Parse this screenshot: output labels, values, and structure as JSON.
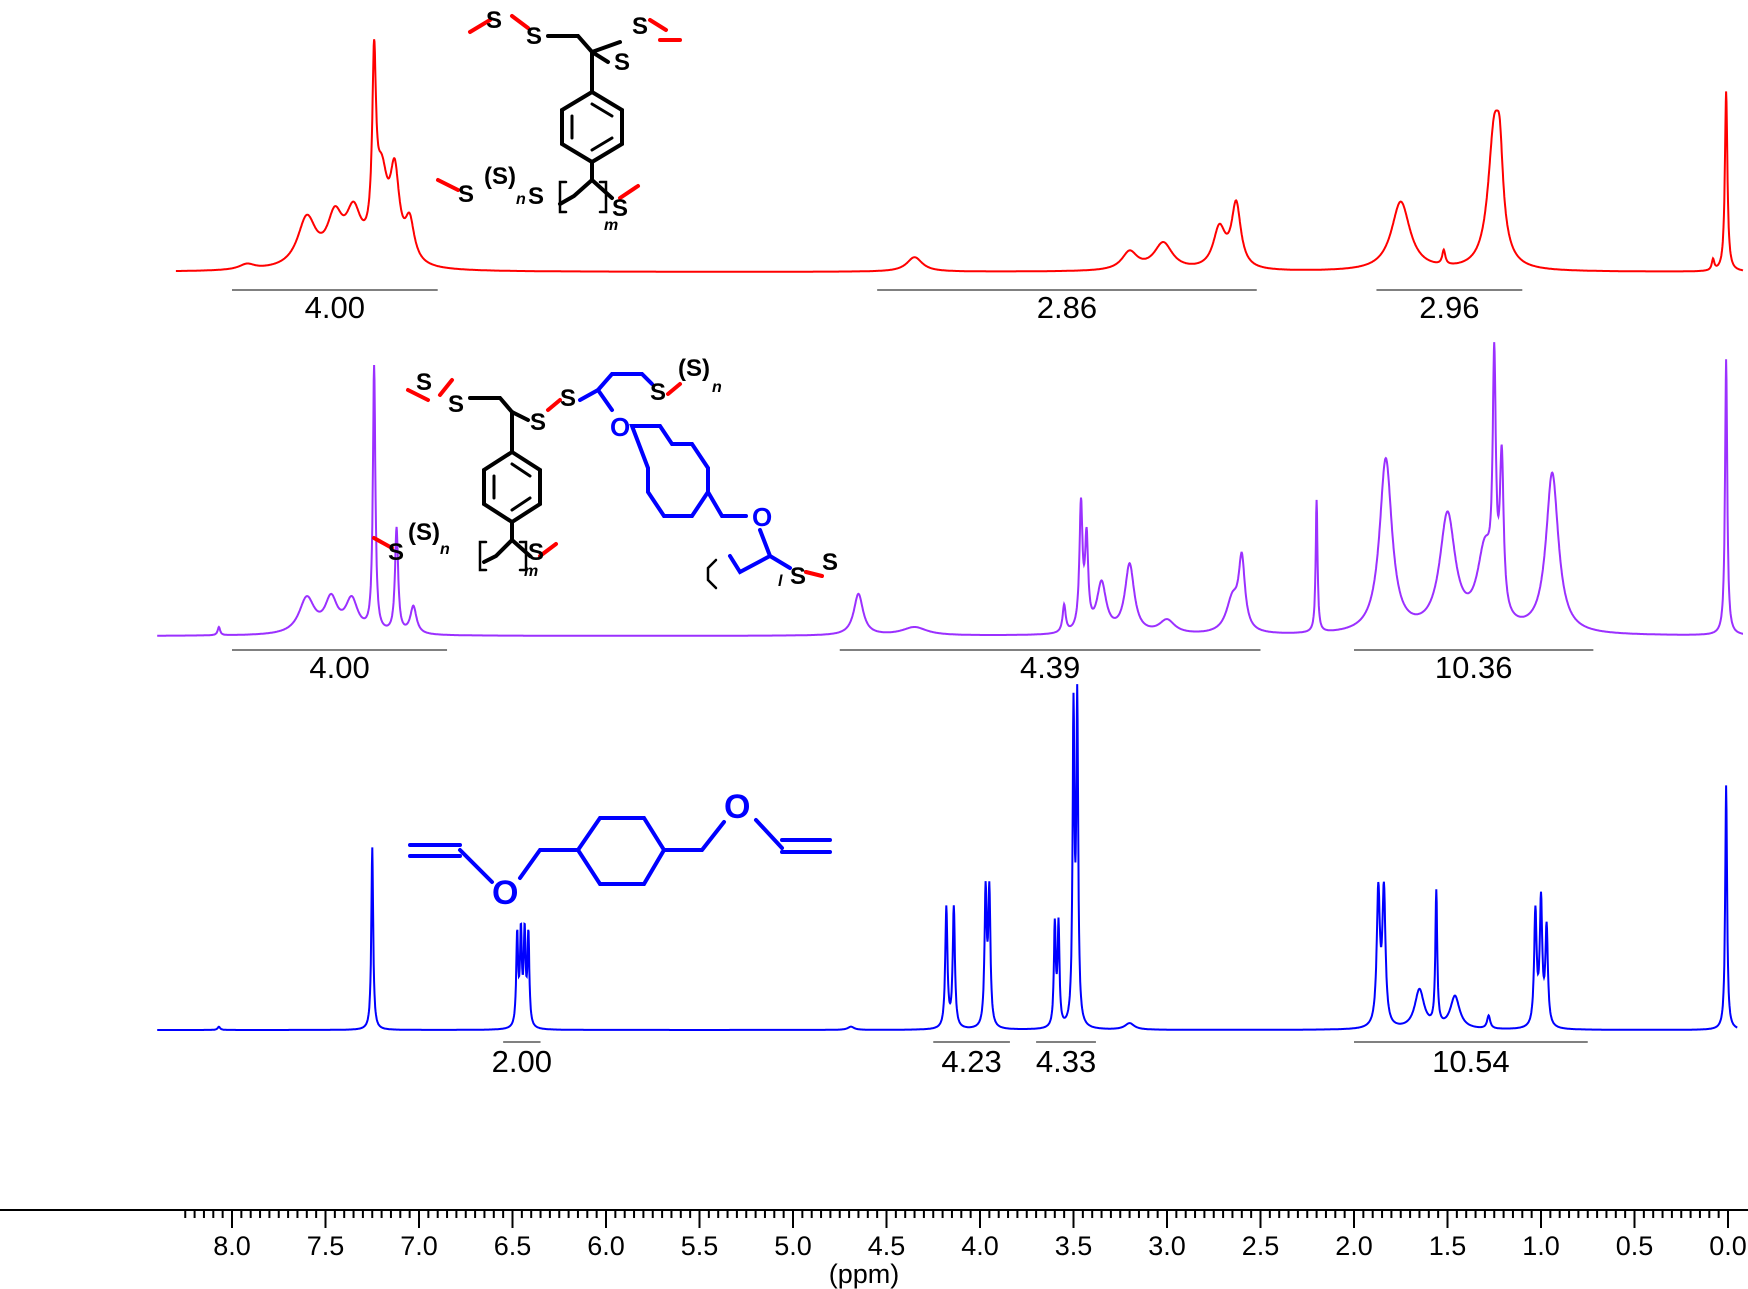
{
  "chart_data": {
    "type": "line",
    "xlabel": "(ppm)",
    "xlim": [
      8.3,
      -0.05
    ],
    "x_reversed": true,
    "x_ticks": [
      "8.0",
      "7.5",
      "7.0",
      "6.5",
      "6.0",
      "5.5",
      "5.0",
      "4.5",
      "4.0",
      "3.5",
      "3.0",
      "2.5",
      "2.0",
      "1.5",
      "1.0",
      "0.5",
      "0.0"
    ],
    "grid": false,
    "legend": "none",
    "series": [
      {
        "color": "#ff0000",
        "peaks": [
          {
            "ppm": 7.92,
            "h": 0.03,
            "w": 0.05
          },
          {
            "ppm": 7.6,
            "h": 0.27,
            "w": 0.06
          },
          {
            "ppm": 7.45,
            "h": 0.25,
            "w": 0.05
          },
          {
            "ppm": 7.35,
            "h": 0.27,
            "w": 0.05
          },
          {
            "ppm": 7.24,
            "h": 0.95,
            "w": 0.012
          },
          {
            "ppm": 7.2,
            "h": 0.45,
            "w": 0.04
          },
          {
            "ppm": 7.13,
            "h": 0.45,
            "w": 0.03
          },
          {
            "ppm": 7.05,
            "h": 0.22,
            "w": 0.03
          },
          {
            "ppm": 4.35,
            "h": 0.08,
            "w": 0.05
          },
          {
            "ppm": 3.2,
            "h": 0.1,
            "w": 0.05
          },
          {
            "ppm": 3.02,
            "h": 0.15,
            "w": 0.06
          },
          {
            "ppm": 2.72,
            "h": 0.22,
            "w": 0.04
          },
          {
            "ppm": 2.63,
            "h": 0.35,
            "w": 0.03
          },
          {
            "ppm": 1.75,
            "h": 0.38,
            "w": 0.06
          },
          {
            "ppm": 1.52,
            "h": 0.08,
            "w": 0.01
          },
          {
            "ppm": 1.25,
            "h": 0.75,
            "w": 0.04
          },
          {
            "ppm": 1.22,
            "h": 0.35,
            "w": 0.02
          },
          {
            "ppm": 0.08,
            "h": 0.06,
            "w": 0.008
          },
          {
            "ppm": 0.01,
            "h": 0.99,
            "w": 0.008
          }
        ],
        "integrals": [
          {
            "from": 8.0,
            "to": 6.9,
            "label": "4.00"
          },
          {
            "from": 4.55,
            "to": 2.52,
            "label": "2.86"
          },
          {
            "from": 1.88,
            "to": 1.1,
            "label": "2.96"
          }
        ]
      },
      {
        "color": "#9b30ff",
        "peaks": [
          {
            "ppm": 8.07,
            "h": 0.03,
            "w": 0.008
          },
          {
            "ppm": 7.6,
            "h": 0.13,
            "w": 0.05
          },
          {
            "ppm": 7.47,
            "h": 0.12,
            "w": 0.04
          },
          {
            "ppm": 7.36,
            "h": 0.12,
            "w": 0.04
          },
          {
            "ppm": 7.24,
            "h": 0.96,
            "w": 0.008
          },
          {
            "ppm": 7.12,
            "h": 0.38,
            "w": 0.01
          },
          {
            "ppm": 7.03,
            "h": 0.1,
            "w": 0.02
          },
          {
            "ppm": 4.65,
            "h": 0.15,
            "w": 0.03
          },
          {
            "ppm": 4.35,
            "h": 0.03,
            "w": 0.08
          },
          {
            "ppm": 3.55,
            "h": 0.1,
            "w": 0.01
          },
          {
            "ppm": 3.46,
            "h": 0.45,
            "w": 0.01
          },
          {
            "ppm": 3.43,
            "h": 0.32,
            "w": 0.01
          },
          {
            "ppm": 3.35,
            "h": 0.18,
            "w": 0.03
          },
          {
            "ppm": 3.2,
            "h": 0.25,
            "w": 0.03
          },
          {
            "ppm": 3.0,
            "h": 0.05,
            "w": 0.05
          },
          {
            "ppm": 2.65,
            "h": 0.12,
            "w": 0.04
          },
          {
            "ppm": 2.6,
            "h": 0.25,
            "w": 0.02
          },
          {
            "ppm": 2.2,
            "h": 0.48,
            "w": 0.006
          },
          {
            "ppm": 1.83,
            "h": 0.63,
            "w": 0.04
          },
          {
            "ppm": 1.5,
            "h": 0.42,
            "w": 0.05
          },
          {
            "ppm": 1.3,
            "h": 0.28,
            "w": 0.05
          },
          {
            "ppm": 1.25,
            "h": 0.85,
            "w": 0.01
          },
          {
            "ppm": 1.21,
            "h": 0.55,
            "w": 0.012
          },
          {
            "ppm": 0.94,
            "h": 0.58,
            "w": 0.04
          },
          {
            "ppm": 0.01,
            "h": 1.0,
            "w": 0.007
          }
        ],
        "integrals": [
          {
            "from": 8.0,
            "to": 6.85,
            "label": "4.00"
          },
          {
            "from": 4.75,
            "to": 2.5,
            "label": "4.39"
          },
          {
            "from": 2.0,
            "to": 0.72,
            "label": "10.36"
          }
        ]
      },
      {
        "color": "#0000ff",
        "peaks": [
          {
            "ppm": 8.07,
            "h": 0.01,
            "w": 0.008
          },
          {
            "ppm": 7.25,
            "h": 0.56,
            "w": 0.006
          },
          {
            "ppm": 6.475,
            "h": 0.28,
            "w": 0.006
          },
          {
            "ppm": 6.455,
            "h": 0.28,
            "w": 0.006
          },
          {
            "ppm": 6.435,
            "h": 0.28,
            "w": 0.006
          },
          {
            "ppm": 6.415,
            "h": 0.28,
            "w": 0.006
          },
          {
            "ppm": 4.69,
            "h": 0.01,
            "w": 0.02
          },
          {
            "ppm": 4.18,
            "h": 0.37,
            "w": 0.007
          },
          {
            "ppm": 4.14,
            "h": 0.37,
            "w": 0.007
          },
          {
            "ppm": 3.97,
            "h": 0.41,
            "w": 0.007
          },
          {
            "ppm": 3.95,
            "h": 0.41,
            "w": 0.007
          },
          {
            "ppm": 3.6,
            "h": 0.31,
            "w": 0.006
          },
          {
            "ppm": 3.58,
            "h": 0.31,
            "w": 0.006
          },
          {
            "ppm": 3.5,
            "h": 0.95,
            "w": 0.006
          },
          {
            "ppm": 3.48,
            "h": 0.98,
            "w": 0.006
          },
          {
            "ppm": 3.2,
            "h": 0.02,
            "w": 0.03
          },
          {
            "ppm": 1.87,
            "h": 0.41,
            "w": 0.01
          },
          {
            "ppm": 1.84,
            "h": 0.41,
            "w": 0.01
          },
          {
            "ppm": 1.65,
            "h": 0.12,
            "w": 0.03
          },
          {
            "ppm": 1.56,
            "h": 0.41,
            "w": 0.006
          },
          {
            "ppm": 1.46,
            "h": 0.1,
            "w": 0.03
          },
          {
            "ppm": 1.28,
            "h": 0.04,
            "w": 0.01
          },
          {
            "ppm": 1.03,
            "h": 0.35,
            "w": 0.008
          },
          {
            "ppm": 1.0,
            "h": 0.38,
            "w": 0.008
          },
          {
            "ppm": 0.97,
            "h": 0.3,
            "w": 0.008
          },
          {
            "ppm": 0.01,
            "h": 0.75,
            "w": 0.006
          }
        ],
        "integrals": [
          {
            "from": 6.55,
            "to": 6.35,
            "label": "2.00"
          },
          {
            "from": 4.25,
            "to": 3.84,
            "label": "4.23"
          },
          {
            "from": 3.7,
            "to": 3.38,
            "label": "4.33"
          },
          {
            "from": 2.0,
            "to": 0.75,
            "label": "10.54"
          }
        ]
      }
    ]
  },
  "structures": {
    "top": {
      "atoms": [
        "S",
        "S",
        "S",
        "S",
        "S",
        "(S)",
        "n",
        "S",
        "S",
        "m",
        "S"
      ]
    },
    "middle": {
      "atoms": [
        "S",
        "S",
        "S",
        "S",
        "S",
        "(S)",
        "n",
        "O",
        "O",
        "S",
        "(S)",
        "n",
        "S",
        "m",
        "S",
        "S",
        "l"
      ]
    },
    "bottom": {
      "atoms": [
        "O",
        "O"
      ]
    }
  }
}
